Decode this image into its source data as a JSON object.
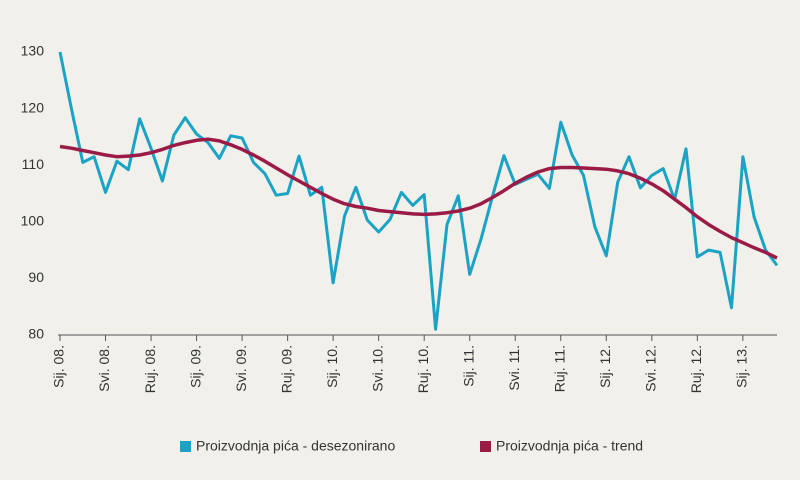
{
  "chart_data": {
    "type": "line",
    "categories": [
      "Sij. 08.",
      null,
      null,
      null,
      "Svi. 08.",
      null,
      null,
      null,
      "Ruj. 08.",
      null,
      null,
      null,
      "Sij. 09.",
      null,
      null,
      null,
      "Svi. 09.",
      null,
      null,
      null,
      "Ruj. 09.",
      null,
      null,
      null,
      "Sij. 10.",
      null,
      null,
      null,
      "Svi. 10.",
      null,
      null,
      null,
      "Ruj. 10.",
      null,
      null,
      null,
      "Sij. 11.",
      null,
      null,
      null,
      "Svi. 11.",
      null,
      null,
      null,
      "Ruj. 11.",
      null,
      null,
      null,
      "Sij. 12.",
      null,
      null,
      null,
      "Svi. 12.",
      null,
      null,
      null,
      "Ruj. 12.",
      null,
      null,
      null,
      "Sij. 13.",
      null,
      null,
      null
    ],
    "series": [
      {
        "name": "Proizvodnja pića - desezonirano",
        "color": "#1ba3c6",
        "values": [
          130,
          120,
          110.5,
          111.5,
          105.2,
          110.7,
          109.2,
          118.2,
          113,
          107.2,
          115.3,
          118.4,
          115.5,
          114,
          111.2,
          115.2,
          114.8,
          110.5,
          108.5,
          104.7,
          105,
          111.6,
          104.7,
          106.1,
          89.2,
          101,
          106.1,
          100.3,
          98.2,
          100.4,
          105.2,
          102.9,
          104.8,
          81,
          99.5,
          104.6,
          90.7,
          97,
          104.5,
          111.7,
          106.6,
          107.5,
          108.4,
          105.9,
          117.6,
          111.8,
          108.2,
          99.1,
          94,
          107,
          111.5,
          106,
          108.2,
          109.4,
          103.9,
          112.9,
          93.8,
          95,
          94.6,
          84.8,
          111.5,
          100.8,
          95,
          92.3
        ]
      },
      {
        "name": "Proizvodnja pića - trend",
        "color": "#9b1b47",
        "values": [
          113.3,
          113,
          112.6,
          112.2,
          111.8,
          111.5,
          111.6,
          111.8,
          112.2,
          112.8,
          113.5,
          114,
          114.4,
          114.6,
          114.3,
          113.6,
          112.8,
          111.8,
          110.7,
          109.5,
          108.3,
          107.2,
          106.1,
          105,
          104,
          103.2,
          102.7,
          102.4,
          102,
          101.8,
          101.6,
          101.4,
          101.3,
          101.4,
          101.6,
          101.9,
          102.4,
          103.2,
          104.3,
          105.5,
          106.8,
          107.9,
          108.8,
          109.4,
          109.6,
          109.6,
          109.5,
          109.4,
          109.3,
          109,
          108.5,
          107.7,
          106.7,
          105.5,
          104,
          102.5,
          100.9,
          99.5,
          98.3,
          97.2,
          96.3,
          95.4,
          94.6,
          93.6
        ]
      }
    ],
    "ylim": [
      80,
      130
    ],
    "yticks": [
      80,
      90,
      100,
      110,
      120,
      130
    ],
    "grid": false
  }
}
